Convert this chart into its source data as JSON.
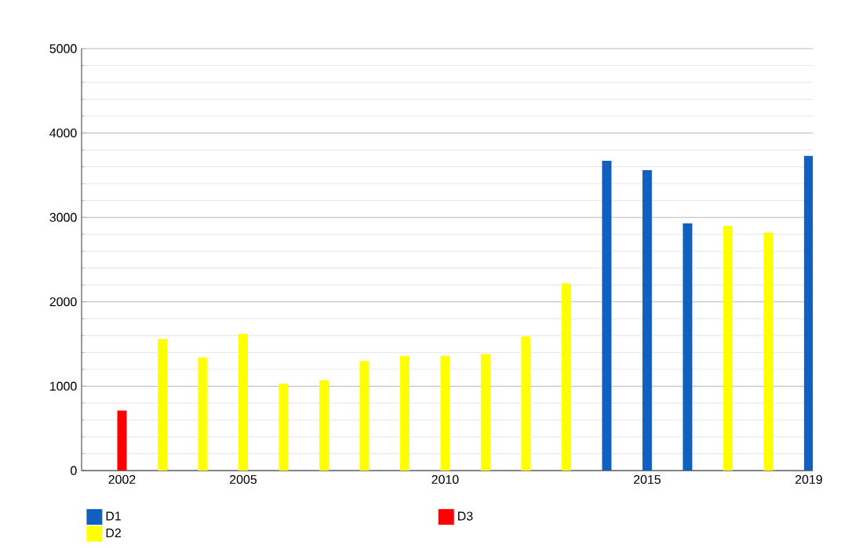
{
  "chart_data": {
    "type": "bar",
    "xlim": [
      2001,
      2019.1
    ],
    "ylim": [
      0,
      5000
    ],
    "xticks": [
      2002,
      2005,
      2010,
      2015,
      2019
    ],
    "yticks": [
      0,
      1000,
      2000,
      3000,
      4000,
      5000
    ],
    "grid": "y",
    "legend": "bottom",
    "series": [
      {
        "name": "D1",
        "color": "#1060c0",
        "x": [
          2014,
          2015,
          2016,
          2019
        ],
        "values": [
          3670,
          3560,
          2930,
          3730
        ]
      },
      {
        "name": "D2",
        "color": "#ffff00",
        "x": [
          2003,
          2004,
          2005,
          2006,
          2007,
          2008,
          2009,
          2010,
          2011,
          2012,
          2013,
          2017,
          2018
        ],
        "values": [
          1560,
          1340,
          1620,
          1030,
          1070,
          1300,
          1360,
          1360,
          1380,
          1590,
          2220,
          2900,
          2820
        ]
      },
      {
        "name": "D3",
        "color": "#ff0000",
        "x": [
          2002
        ],
        "values": [
          710
        ]
      }
    ]
  }
}
